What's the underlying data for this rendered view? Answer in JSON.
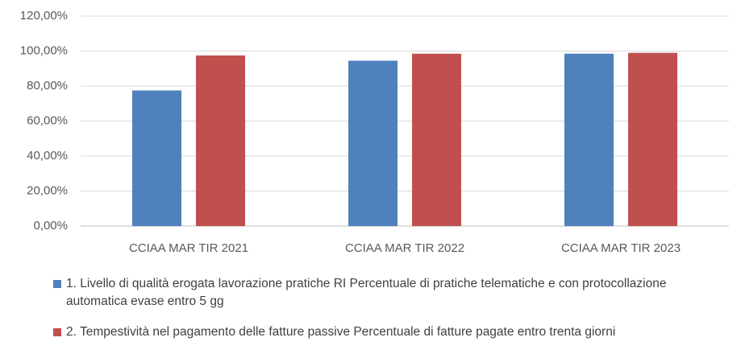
{
  "chart_data": {
    "type": "bar",
    "categories": [
      "CCIAA MAR TIR 2021",
      "CCIAA MAR TIR 2022",
      "CCIAA MAR TIR 2023"
    ],
    "series": [
      {
        "name": "1. Livello di qualità erogata lavorazione pratiche RI Percentuale di pratiche telematiche e con protocollazione automatica evase entro 5 gg",
        "color": "#4f81bd",
        "values": [
          77.5,
          94.5,
          98.5
        ]
      },
      {
        "name": "2. Tempestività nel pagamento delle fatture passive Percentuale di fatture pagate entro trenta giorni",
        "color": "#c0504d",
        "values": [
          97.5,
          98.5,
          99
        ]
      }
    ],
    "ylim": [
      0,
      120
    ],
    "yticks": [
      {
        "value": 0,
        "label": "0,00%"
      },
      {
        "value": 20,
        "label": "20,00%"
      },
      {
        "value": 40,
        "label": "40,00%"
      },
      {
        "value": 60,
        "label": "60,00%"
      },
      {
        "value": 80,
        "label": "80,00%"
      },
      {
        "value": 100,
        "label": "100,00%"
      },
      {
        "value": 120,
        "label": "120,00%"
      }
    ],
    "grid": true,
    "legend": "bottom"
  }
}
